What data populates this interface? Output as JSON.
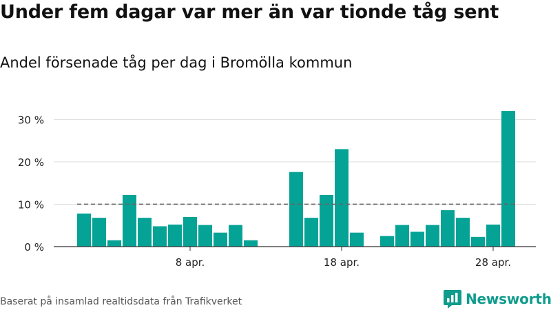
{
  "title": "Under fem dagar var mer än var tionde tåg sent",
  "subtitle": "Andel försenade tåg per dag i Bromölla kommun",
  "footer": "Baserat på insamlad realtidsdata från Trafikverket",
  "brand": {
    "name": "Newsworthy",
    "logo_icon": "bar-chart-speech-bubble-icon",
    "color": "#0f9c8c"
  },
  "chart_data": {
    "type": "bar",
    "x": [
      "2024-04-01",
      "2024-04-02",
      "2024-04-03",
      "2024-04-04",
      "2024-04-05",
      "2024-04-06",
      "2024-04-07",
      "2024-04-08",
      "2024-04-09",
      "2024-04-10",
      "2024-04-11",
      "2024-04-12",
      "2024-04-13",
      "2024-04-14",
      "2024-04-15",
      "2024-04-16",
      "2024-04-17",
      "2024-04-18",
      "2024-04-19",
      "2024-04-20",
      "2024-04-21",
      "2024-04-22",
      "2024-04-23",
      "2024-04-24",
      "2024-04-25",
      "2024-04-26",
      "2024-04-27",
      "2024-04-28",
      "2024-04-29"
    ],
    "values": [
      7.8,
      6.8,
      1.5,
      12.2,
      6.8,
      4.8,
      5.2,
      7.0,
      5.1,
      3.3,
      5.1,
      1.5,
      null,
      null,
      17.6,
      6.8,
      12.2,
      23.0,
      3.3,
      null,
      2.5,
      5.1,
      3.5,
      5.1,
      8.6,
      6.8,
      2.3,
      5.2,
      32.0
    ],
    "ylim": [
      0,
      32.5
    ],
    "yticks": [
      0,
      10,
      20,
      30
    ],
    "ytick_labels": [
      "0 %",
      "10 %",
      "20 %",
      "30 %"
    ],
    "xticks": [
      "2024-04-08",
      "2024-04-18",
      "2024-04-28"
    ],
    "xtick_labels": [
      "8 apr.",
      "18 apr.",
      "28 apr."
    ],
    "reference_line": {
      "value": 10,
      "style": "dashed",
      "color": "#666666"
    },
    "bar_color": "#05a396",
    "grid": true,
    "xlabel": "",
    "ylabel": ""
  }
}
